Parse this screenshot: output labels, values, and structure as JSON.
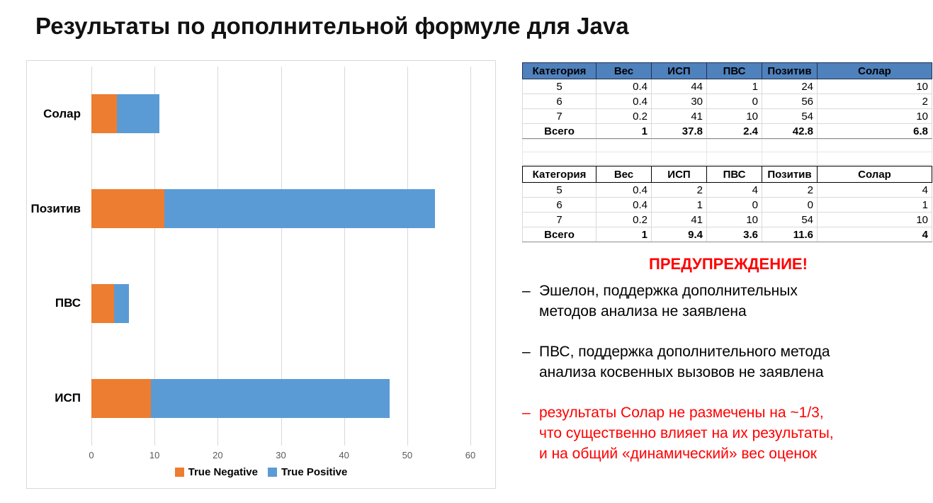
{
  "page": {
    "title": "Результаты по дополнительной формуле для Java"
  },
  "chart_data": {
    "type": "bar",
    "orientation": "horizontal",
    "stacked": true,
    "title": "",
    "xlabel": "",
    "ylabel": "",
    "categories": [
      "Солар",
      "Позитив",
      "ПВС",
      "ИСП"
    ],
    "series": [
      {
        "name": "True Negative",
        "color": "#ED7D31",
        "values": [
          4,
          11.6,
          3.6,
          9.4
        ]
      },
      {
        "name": "True Positive",
        "color": "#5B9BD5",
        "values": [
          6.8,
          42.8,
          2.4,
          37.8
        ]
      }
    ],
    "xlim": [
      0,
      60
    ],
    "x_ticks": [
      0,
      10,
      20,
      30,
      40,
      50,
      60
    ],
    "grid": true,
    "legend_position": "bottom"
  },
  "tables": [
    {
      "name": "true-positive-table",
      "header_style": "blue",
      "columns": [
        "Категория",
        "Вес",
        "ИСП",
        "ПВС",
        "Позитив",
        "Солар"
      ],
      "rows": [
        [
          "5",
          "0.4",
          "44",
          "1",
          "24",
          "10"
        ],
        [
          "6",
          "0.4",
          "30",
          "0",
          "56",
          "2"
        ],
        [
          "7",
          "0.2",
          "41",
          "10",
          "54",
          "10"
        ],
        [
          "Всего",
          "1",
          "37.8",
          "2.4",
          "42.8",
          "6.8"
        ]
      ]
    },
    {
      "name": "true-negative-table",
      "header_style": "white",
      "columns": [
        "Категория",
        "Вес",
        "ИСП",
        "ПВС",
        "Позитив",
        "Солар"
      ],
      "rows": [
        [
          "5",
          "0.4",
          "2",
          "4",
          "2",
          "4"
        ],
        [
          "6",
          "0.4",
          "1",
          "0",
          "0",
          "1"
        ],
        [
          "7",
          "0.2",
          "41",
          "10",
          "54",
          "10"
        ],
        [
          "Всего",
          "1",
          "9.4",
          "3.6",
          "11.6",
          "4"
        ]
      ]
    }
  ],
  "warning": {
    "title": "ПРЕДУПРЕЖДЕНИЕ!",
    "bullet": "–",
    "items": [
      {
        "color": "black",
        "lines": [
          "Эшелон, поддержка дополнительных",
          "методов анализа не заявлена"
        ]
      },
      {
        "color": "black",
        "lines": [
          "ПВС, поддержка дополнительного метода",
          "анализа косвенных вызовов не заявлена"
        ]
      },
      {
        "color": "red",
        "lines": [
          "результаты Солар не размечены на ~1/3,",
          "что существенно влияет на их результаты,",
          "и на общий «динамический» вес оценок"
        ]
      }
    ]
  },
  "colors": {
    "true_negative": "#ED7D31",
    "true_positive": "#5B9BD5",
    "table_header_blue": "#4F81BD",
    "warning_red": "#FF0000",
    "gridline": "#D9D9D9"
  }
}
